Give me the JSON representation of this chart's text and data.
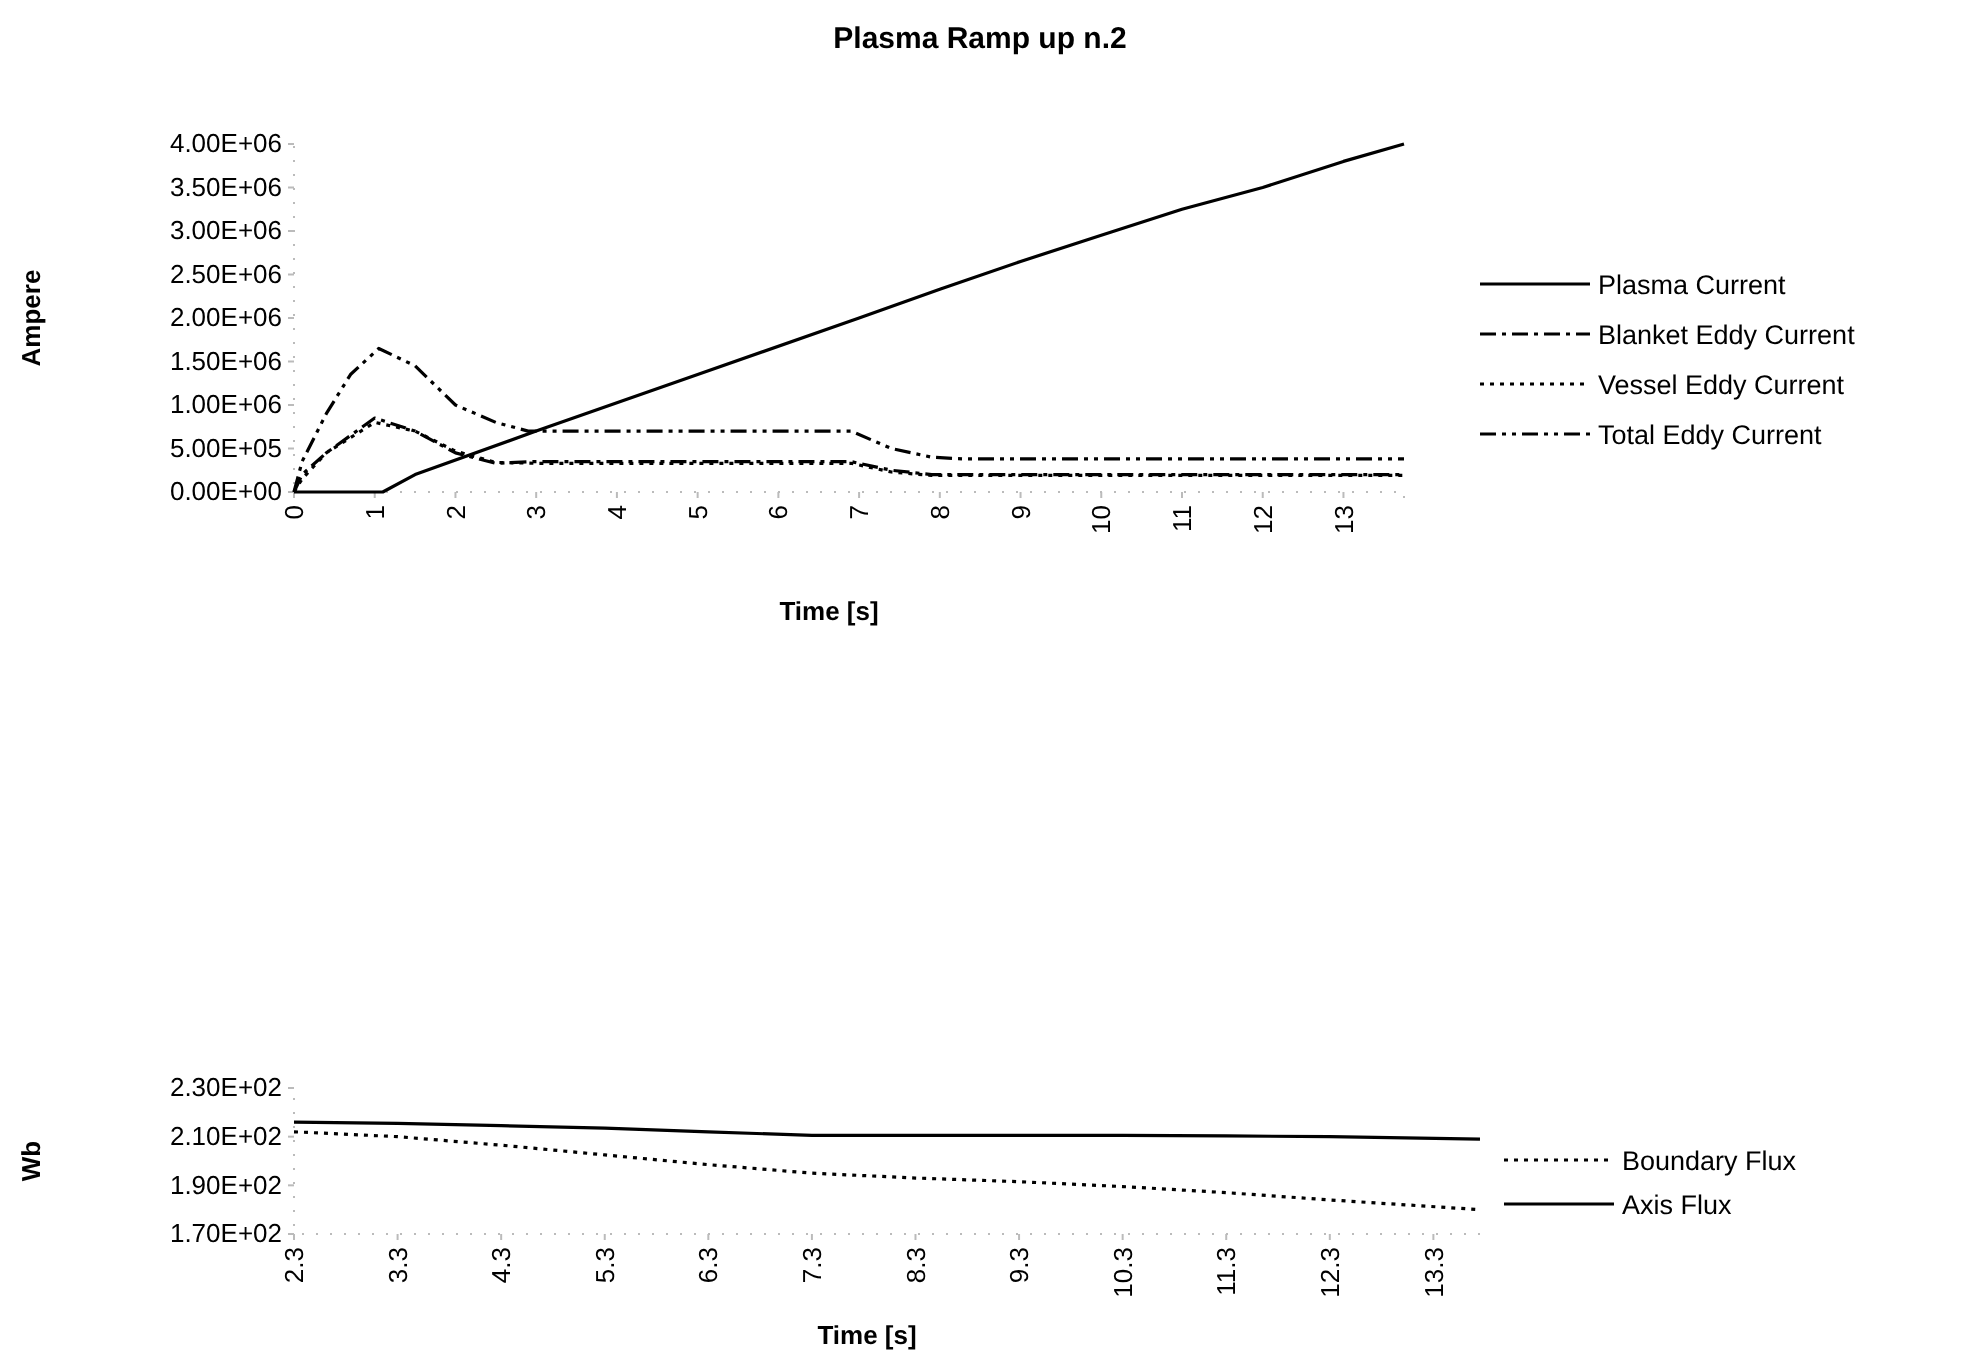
{
  "chart_data": [
    {
      "type": "line",
      "title": "Plasma Ramp up n.2",
      "xlabel": "Time [s]",
      "ylabel": "Ampere",
      "xlim": [
        0,
        13.75
      ],
      "ylim": [
        0,
        4000000
      ],
      "xticks": [
        0,
        1,
        2,
        3,
        4,
        5,
        6,
        7,
        8,
        9,
        10,
        11,
        12,
        13
      ],
      "yticks": [
        {
          "value": 0,
          "label": "0.00E+00"
        },
        {
          "value": 500000,
          "label": "5.00E+05"
        },
        {
          "value": 1000000,
          "label": "1.00E+06"
        },
        {
          "value": 1500000,
          "label": "1.50E+06"
        },
        {
          "value": 2000000,
          "label": "2.00E+06"
        },
        {
          "value": 2500000,
          "label": "2.50E+06"
        },
        {
          "value": 3000000,
          "label": "3.00E+06"
        },
        {
          "value": 3500000,
          "label": "3.50E+06"
        },
        {
          "value": 4000000,
          "label": "4.00E+06"
        }
      ],
      "grid": false,
      "legend": "right",
      "marker": "none",
      "series": [
        {
          "name": "Plasma Current",
          "color": "#000000",
          "line_style": "solid",
          "x": [
            0,
            1.1,
            1.5,
            3,
            5,
            7,
            8,
            9,
            10,
            11,
            12,
            13,
            13.75
          ],
          "values": [
            0,
            0,
            200000,
            700000,
            1350000,
            2000000,
            2330000,
            2650000,
            2950000,
            3250000,
            3500000,
            3800000,
            4000000
          ]
        },
        {
          "name": "Blanket Eddy Current",
          "color": "#000000",
          "line_style": "dashdot",
          "x": [
            0,
            0.1,
            0.4,
            1,
            1.5,
            2,
            2.5,
            3,
            6.9,
            7.4,
            7.9,
            13.75
          ],
          "values": [
            0,
            200000,
            450000,
            850000,
            700000,
            450000,
            330000,
            350000,
            350000,
            250000,
            200000,
            200000
          ]
        },
        {
          "name": "Vessel Eddy Current",
          "color": "#000000",
          "line_style": "dotted",
          "x": [
            0,
            0.1,
            0.4,
            1,
            1.5,
            2,
            2.5,
            3,
            6.9,
            7.4,
            7.9,
            13.75
          ],
          "values": [
            0,
            150000,
            450000,
            800000,
            700000,
            470000,
            340000,
            330000,
            330000,
            230000,
            190000,
            190000
          ]
        },
        {
          "name": "Total Eddy Current",
          "color": "#000000",
          "line_style": "dashdotdot",
          "x": [
            0,
            0.1,
            0.4,
            0.7,
            1.05,
            1.5,
            2,
            2.5,
            2.9,
            6.9,
            7.4,
            7.9,
            8.3,
            13.75
          ],
          "values": [
            0,
            350000,
            900000,
            1350000,
            1650000,
            1450000,
            1000000,
            800000,
            700000,
            700000,
            500000,
            400000,
            380000,
            380000
          ]
        }
      ]
    },
    {
      "type": "line",
      "xlabel": "Time [s]",
      "ylabel": "Wb",
      "xlim": [
        2.3,
        13.75
      ],
      "ylim": [
        170,
        230
      ],
      "xticks": [
        2.3,
        3.3,
        4.3,
        5.3,
        6.3,
        7.3,
        8.3,
        9.3,
        10.3,
        11.3,
        12.3,
        13.3
      ],
      "yticks": [
        {
          "value": 170,
          "label": "1.70E+02"
        },
        {
          "value": 190,
          "label": "1.90E+02"
        },
        {
          "value": 210,
          "label": "2.10E+02"
        },
        {
          "value": 230,
          "label": "2.30E+02"
        }
      ],
      "grid": false,
      "legend": "right",
      "marker": "none",
      "series": [
        {
          "name": "Boundary Flux",
          "color": "#000000",
          "line_style": "dotted",
          "x": [
            2.3,
            3.3,
            4.3,
            5.3,
            6.3,
            7.3,
            8.3,
            9.3,
            10.3,
            11.3,
            12.3,
            13.75
          ],
          "values": [
            212,
            210,
            206.5,
            202.5,
            198.5,
            195,
            193,
            191.5,
            189.5,
            187,
            184,
            180
          ]
        },
        {
          "name": "Axis Flux",
          "color": "#000000",
          "line_style": "solid",
          "x": [
            2.3,
            3.3,
            4.3,
            5.3,
            6.3,
            7.3,
            8.3,
            9.3,
            10.3,
            11.3,
            12.3,
            13.75
          ],
          "values": [
            216,
            215.5,
            214.5,
            213.5,
            212,
            210.5,
            210.5,
            210.5,
            210.5,
            210.3,
            210,
            209
          ]
        }
      ]
    }
  ]
}
